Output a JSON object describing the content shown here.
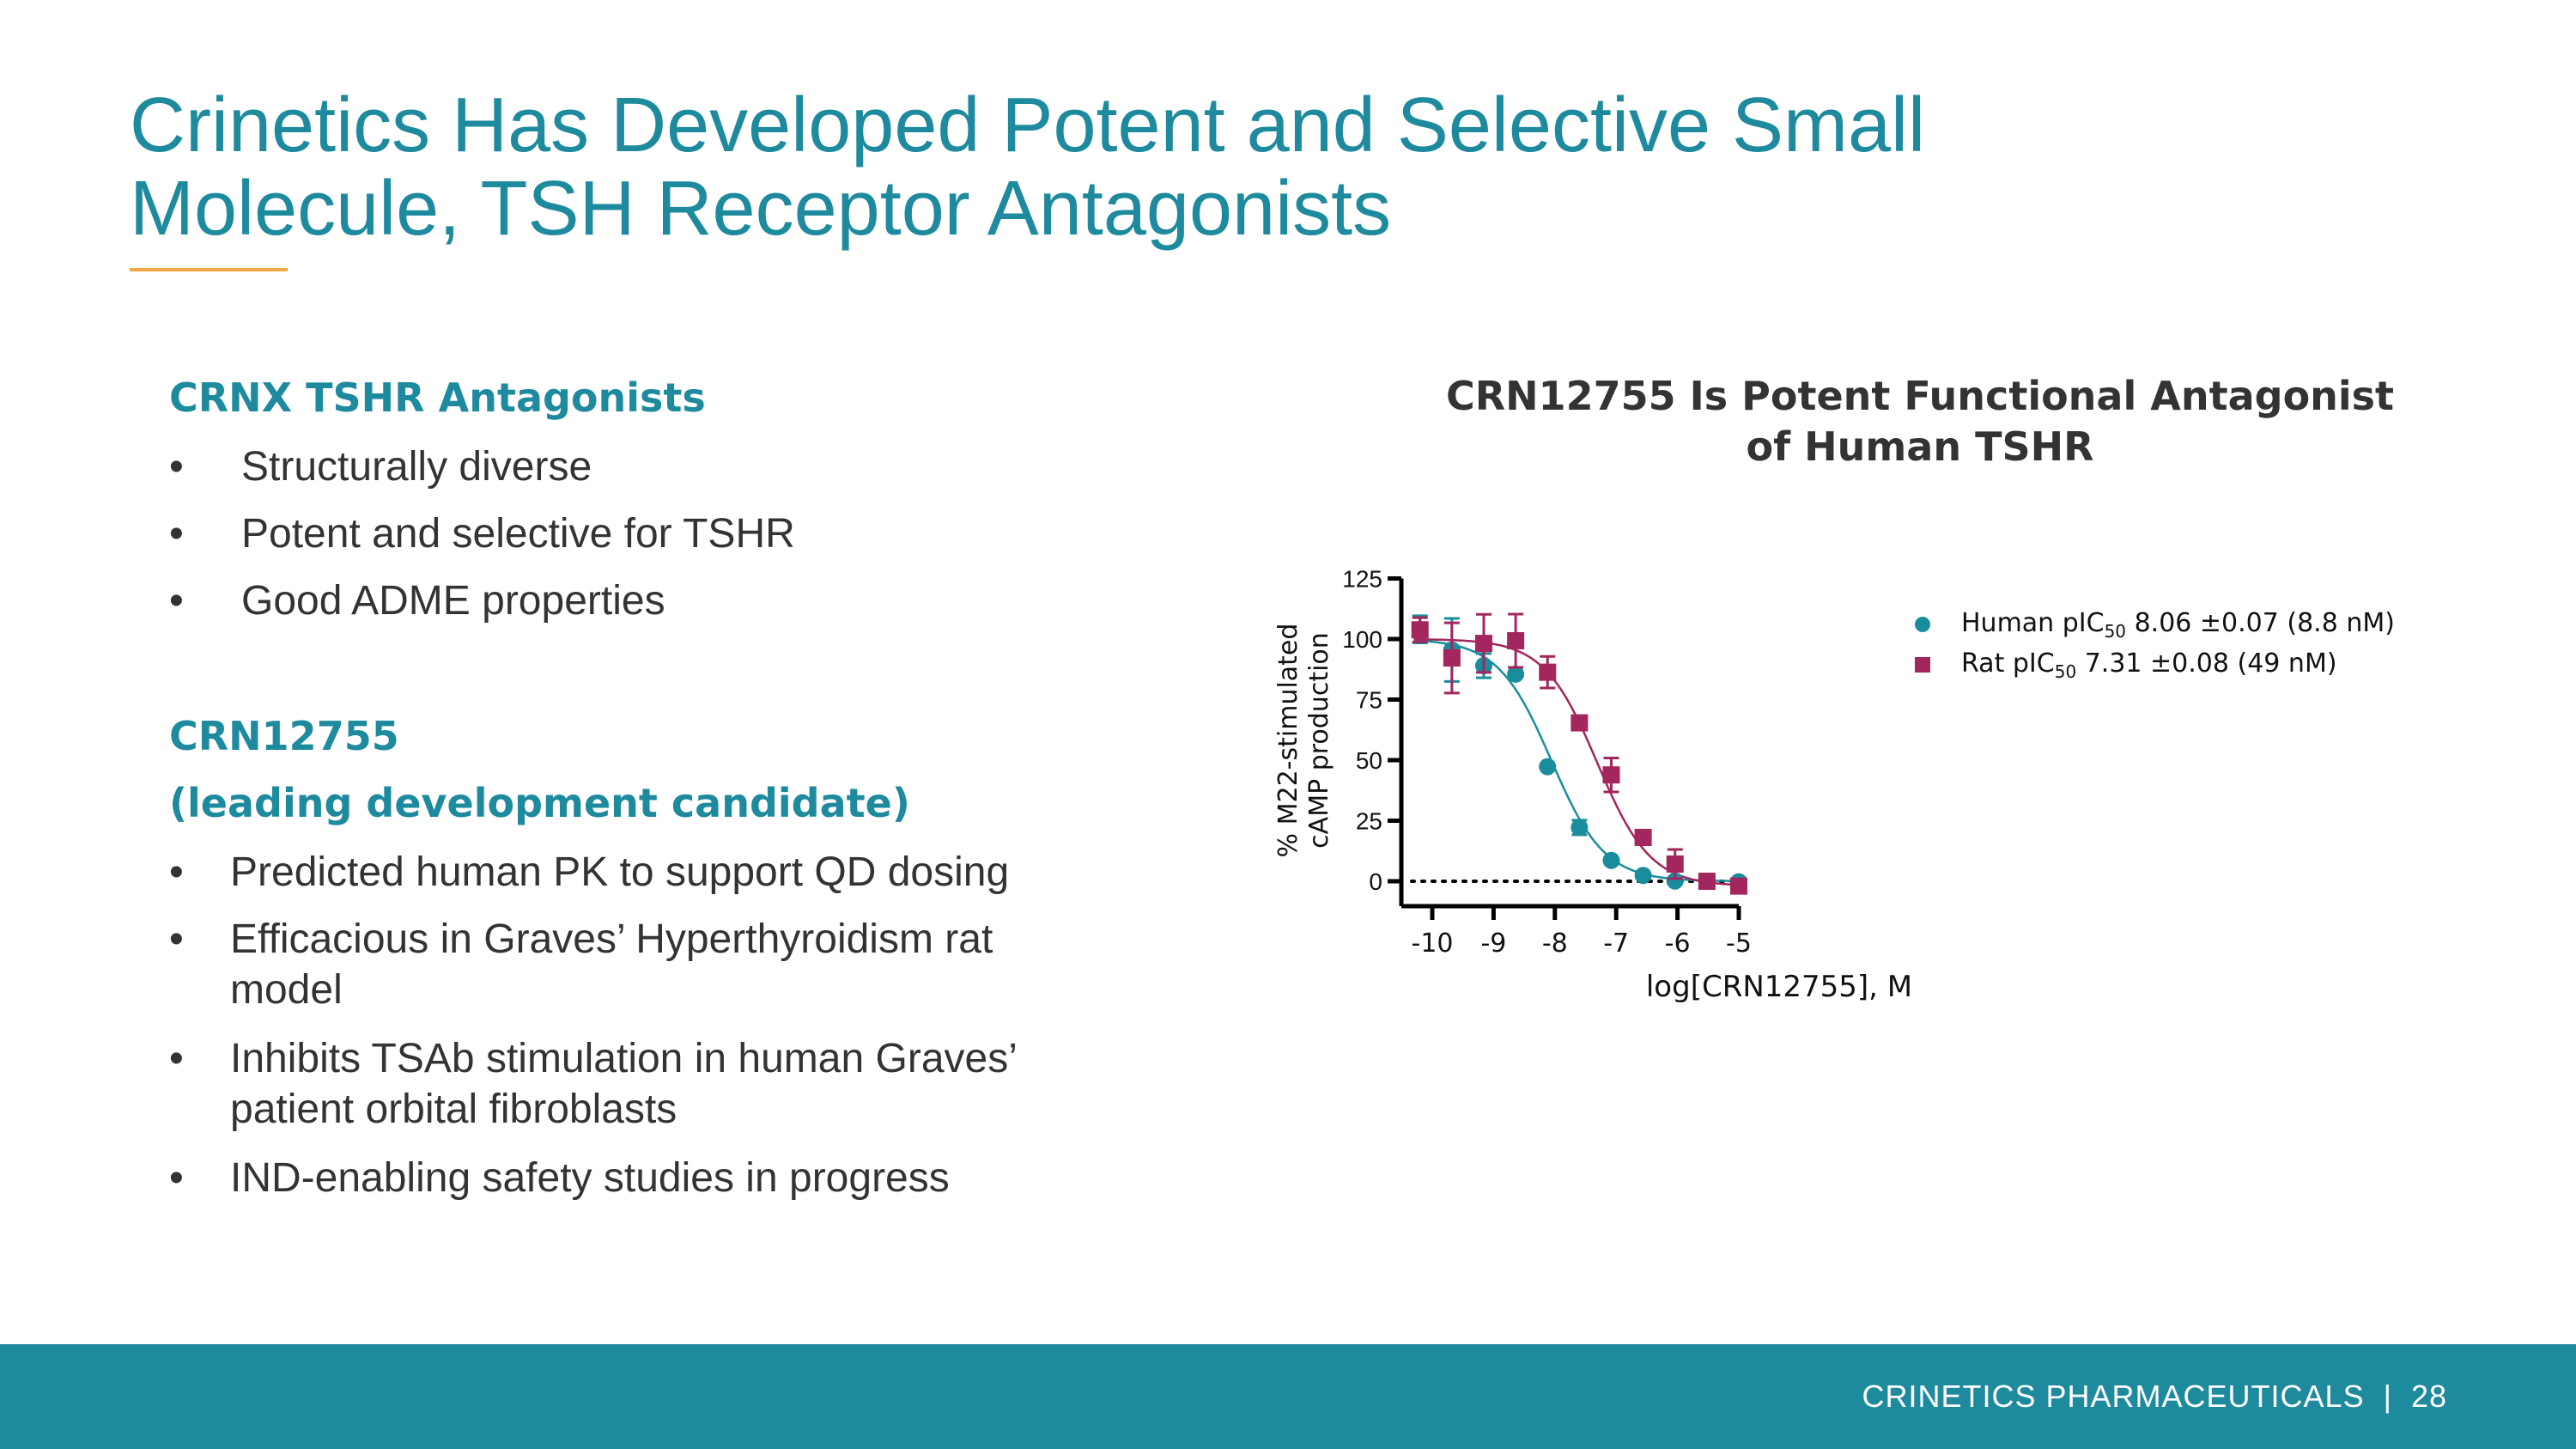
{
  "slide": {
    "title_line1": "Crinetics Has Developed Potent and Selective Small",
    "title_line2": "Molecule, TSH Receptor Antagonists",
    "accent_color": "#1e8a9e",
    "rule_color": "#f0a847"
  },
  "left": {
    "section1": {
      "heading": "CRNX TSHR Antagonists",
      "bullets": [
        "Structurally diverse",
        "Potent and selective for TSHR",
        "Good ADME properties"
      ]
    },
    "section2": {
      "heading_line1": "CRN12755",
      "heading_line2": "(leading development candidate)",
      "bullets": [
        [
          "Predicted human PK to support QD dosing"
        ],
        [
          "Efficacious in Graves’ Hyperthyroidism rat",
          "model"
        ],
        [
          "Inhibits TSAb stimulation in human Graves’",
          "patient orbital fibroblasts"
        ],
        [
          "IND-enabling safety studies in progress"
        ]
      ]
    },
    "bullet_char": "•"
  },
  "chart_data": {
    "type": "scatter",
    "title_line1": "CRN12755 Is Potent Functional Antagonist",
    "title_line2": "of Human TSHR",
    "xlabel": "log[CRN12755], M",
    "ylabel_line1": "% M22-stimulated",
    "ylabel_line2": "cAMP production",
    "xlim": [
      -10.5,
      -5
    ],
    "ylim": [
      -10,
      125
    ],
    "xticks": [
      "-10",
      "-9",
      "-8",
      "-7",
      "-6",
      "-5"
    ],
    "yticks": [
      "0",
      "25",
      "50",
      "75",
      "100",
      "125"
    ],
    "reference_line": {
      "y": 0,
      "style": "dotted"
    },
    "legend_placement": "top-right",
    "series": [
      {
        "name": "Human",
        "legend": {
          "prefix": "Human pIC",
          "sub": "50",
          "suffix": " 8.06 ±0.07 (8.8 nM)"
        },
        "color": "#1a8d9c",
        "marker": "circle",
        "x": [
          -10.2,
          -9.68,
          -9.16,
          -8.64,
          -8.12,
          -7.6,
          -7.08,
          -6.56,
          -6.04,
          -5.52,
          -5.0
        ],
        "y": [
          104,
          95.5,
          89,
          85.5,
          47.3,
          22.2,
          8.6,
          2.4,
          0.1,
          0,
          -0.2
        ],
        "error": [
          5.6,
          13,
          5,
          0,
          0,
          3,
          0,
          0,
          0,
          0,
          0
        ],
        "fit": {
          "top": 100,
          "bottom": 0,
          "logIC50": -8.06,
          "hill": 1
        }
      },
      {
        "name": "Rat",
        "legend": {
          "prefix": "Rat pIC",
          "sub": "50",
          "suffix": " 7.31 ±0.08 (49 nM)"
        },
        "color": "#a3265e",
        "marker": "square",
        "x": [
          -10.2,
          -9.68,
          -9.16,
          -8.64,
          -8.12,
          -7.6,
          -7.08,
          -6.56,
          -6.04,
          -5.52,
          -5.0
        ],
        "y": [
          103.8,
          92.2,
          98.2,
          99.3,
          86.3,
          65.4,
          43.9,
          18.1,
          7.1,
          0,
          -2
        ],
        "error": [
          5,
          14.5,
          12,
          11,
          6.5,
          0,
          7,
          0,
          6,
          0,
          0
        ],
        "fit": {
          "top": 100,
          "bottom": -2,
          "logIC50": -7.31,
          "hill": 1
        }
      }
    ]
  },
  "footer": {
    "text": "CRINETICS PHARMACEUTICALS  |  28",
    "color": "#1e8a9e"
  }
}
